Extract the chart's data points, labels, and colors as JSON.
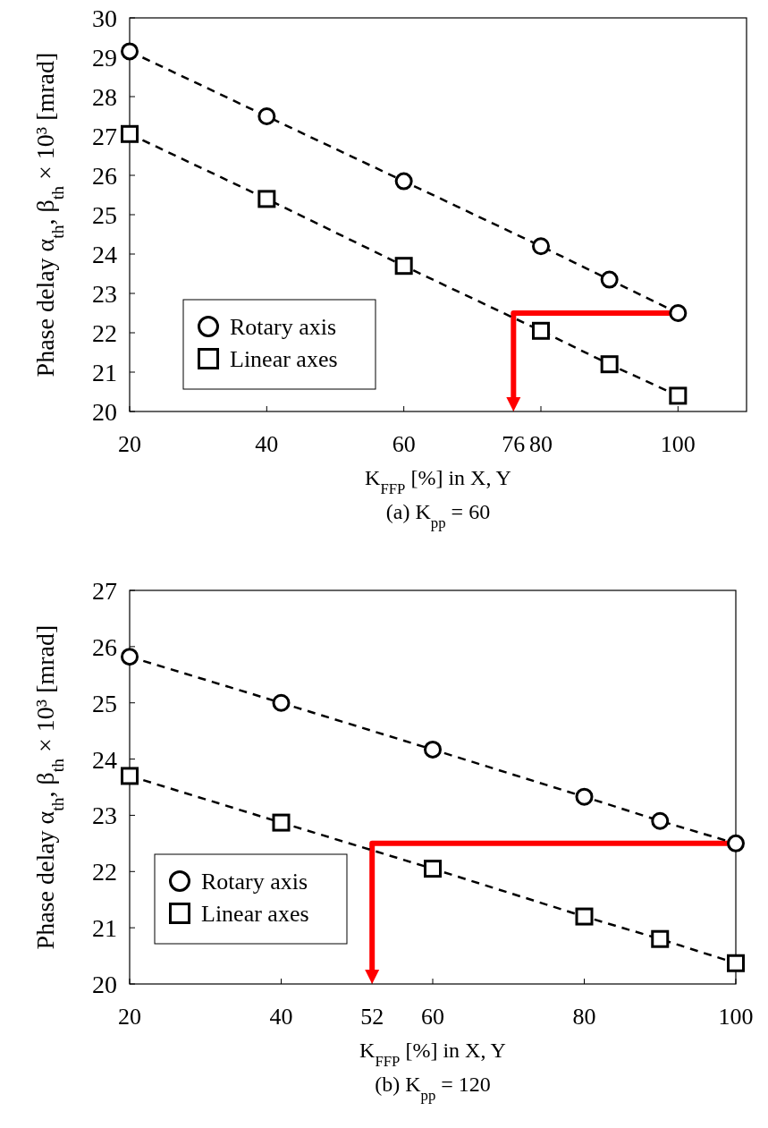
{
  "chart_data": [
    {
      "type": "line",
      "title": "(a) K$_{pp}$ = 60",
      "xlabel": "K$_{FFP}$ [%] in X, Y",
      "ylabel": "Phase delay α$_{th}$, β$_{th}$ × 10³ [mrad]",
      "xlim": [
        20,
        110
      ],
      "xticks": [
        20,
        40,
        60,
        76,
        80,
        100
      ],
      "ylim": [
        20,
        30
      ],
      "yticks": [
        20,
        21,
        22,
        23,
        24,
        25,
        26,
        27,
        28,
        29,
        30
      ],
      "legend": "bottom left",
      "line_style": "dashed",
      "x": [
        20,
        40,
        60,
        80,
        90,
        100
      ],
      "series": [
        {
          "name": "Rotary axis",
          "color": "#000000",
          "marker": "circle",
          "values": [
            29.15,
            27.5,
            25.85,
            24.2,
            23.35,
            22.5
          ]
        },
        {
          "name": "Linear axes",
          "color": "#000000",
          "marker": "square",
          "values": [
            27.05,
            25.4,
            23.7,
            22.05,
            21.2,
            20.4
          ]
        }
      ]
    },
    {
      "type": "line",
      "title": "(b) K$_{pp}$ = 120",
      "xlabel": "K$_{FFP}$ [%] in X, Y",
      "ylabel": "Phase delay α$_{th}$, β$_{th}$ × 10³ [mrad]",
      "xlim": [
        20,
        100
      ],
      "xticks": [
        20,
        40,
        52,
        60,
        80,
        100
      ],
      "ylim": [
        20,
        27
      ],
      "yticks": [
        20,
        21,
        22,
        23,
        24,
        25,
        26,
        27
      ],
      "legend": "bottom left",
      "line_style": "dashed",
      "x": [
        20,
        40,
        60,
        80,
        90,
        100
      ],
      "series": [
        {
          "name": "Rotary axis",
          "color": "#000000",
          "marker": "circle",
          "values": [
            25.82,
            25.0,
            24.17,
            23.33,
            22.9,
            22.5
          ]
        },
        {
          "name": "Linear axes",
          "color": "#000000",
          "marker": "square",
          "values": [
            23.7,
            22.87,
            22.05,
            21.2,
            20.8,
            20.37
          ]
        }
      ]
    }
  ]
}
